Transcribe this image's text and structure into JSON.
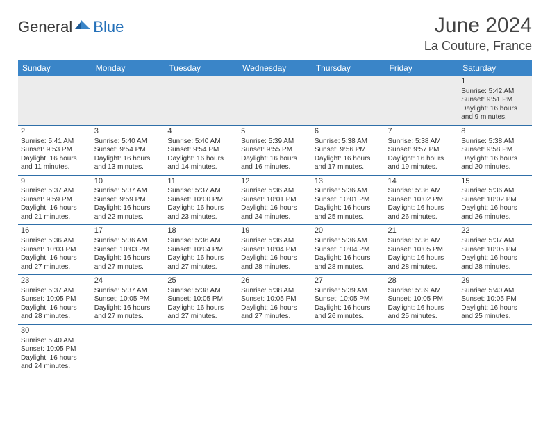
{
  "logo": {
    "part1": "General",
    "part2": "Blue"
  },
  "title": "June 2024",
  "location": "La Couture, France",
  "colors": {
    "header_bg": "#3a85c8",
    "header_text": "#ffffff",
    "row_divider": "#2f6fa8",
    "shaded_row": "#ececec",
    "text": "#333333",
    "logo_blue": "#2470b8"
  },
  "fonts": {
    "title_size": 30,
    "location_size": 18,
    "dayheader_size": 12,
    "cell_size": 10
  },
  "day_headers": [
    "Sunday",
    "Monday",
    "Tuesday",
    "Wednesday",
    "Thursday",
    "Friday",
    "Saturday"
  ],
  "weeks": [
    {
      "shaded": true,
      "days": [
        null,
        null,
        null,
        null,
        null,
        null,
        {
          "n": "1",
          "sunrise": "Sunrise: 5:42 AM",
          "sunset": "Sunset: 9:51 PM",
          "day1": "Daylight: 16 hours",
          "day2": "and 9 minutes."
        }
      ]
    },
    {
      "shaded": false,
      "days": [
        {
          "n": "2",
          "sunrise": "Sunrise: 5:41 AM",
          "sunset": "Sunset: 9:53 PM",
          "day1": "Daylight: 16 hours",
          "day2": "and 11 minutes."
        },
        {
          "n": "3",
          "sunrise": "Sunrise: 5:40 AM",
          "sunset": "Sunset: 9:54 PM",
          "day1": "Daylight: 16 hours",
          "day2": "and 13 minutes."
        },
        {
          "n": "4",
          "sunrise": "Sunrise: 5:40 AM",
          "sunset": "Sunset: 9:54 PM",
          "day1": "Daylight: 16 hours",
          "day2": "and 14 minutes."
        },
        {
          "n": "5",
          "sunrise": "Sunrise: 5:39 AM",
          "sunset": "Sunset: 9:55 PM",
          "day1": "Daylight: 16 hours",
          "day2": "and 16 minutes."
        },
        {
          "n": "6",
          "sunrise": "Sunrise: 5:38 AM",
          "sunset": "Sunset: 9:56 PM",
          "day1": "Daylight: 16 hours",
          "day2": "and 17 minutes."
        },
        {
          "n": "7",
          "sunrise": "Sunrise: 5:38 AM",
          "sunset": "Sunset: 9:57 PM",
          "day1": "Daylight: 16 hours",
          "day2": "and 19 minutes."
        },
        {
          "n": "8",
          "sunrise": "Sunrise: 5:38 AM",
          "sunset": "Sunset: 9:58 PM",
          "day1": "Daylight: 16 hours",
          "day2": "and 20 minutes."
        }
      ]
    },
    {
      "shaded": false,
      "days": [
        {
          "n": "9",
          "sunrise": "Sunrise: 5:37 AM",
          "sunset": "Sunset: 9:59 PM",
          "day1": "Daylight: 16 hours",
          "day2": "and 21 minutes."
        },
        {
          "n": "10",
          "sunrise": "Sunrise: 5:37 AM",
          "sunset": "Sunset: 9:59 PM",
          "day1": "Daylight: 16 hours",
          "day2": "and 22 minutes."
        },
        {
          "n": "11",
          "sunrise": "Sunrise: 5:37 AM",
          "sunset": "Sunset: 10:00 PM",
          "day1": "Daylight: 16 hours",
          "day2": "and 23 minutes."
        },
        {
          "n": "12",
          "sunrise": "Sunrise: 5:36 AM",
          "sunset": "Sunset: 10:01 PM",
          "day1": "Daylight: 16 hours",
          "day2": "and 24 minutes."
        },
        {
          "n": "13",
          "sunrise": "Sunrise: 5:36 AM",
          "sunset": "Sunset: 10:01 PM",
          "day1": "Daylight: 16 hours",
          "day2": "and 25 minutes."
        },
        {
          "n": "14",
          "sunrise": "Sunrise: 5:36 AM",
          "sunset": "Sunset: 10:02 PM",
          "day1": "Daylight: 16 hours",
          "day2": "and 26 minutes."
        },
        {
          "n": "15",
          "sunrise": "Sunrise: 5:36 AM",
          "sunset": "Sunset: 10:02 PM",
          "day1": "Daylight: 16 hours",
          "day2": "and 26 minutes."
        }
      ]
    },
    {
      "shaded": false,
      "days": [
        {
          "n": "16",
          "sunrise": "Sunrise: 5:36 AM",
          "sunset": "Sunset: 10:03 PM",
          "day1": "Daylight: 16 hours",
          "day2": "and 27 minutes."
        },
        {
          "n": "17",
          "sunrise": "Sunrise: 5:36 AM",
          "sunset": "Sunset: 10:03 PM",
          "day1": "Daylight: 16 hours",
          "day2": "and 27 minutes."
        },
        {
          "n": "18",
          "sunrise": "Sunrise: 5:36 AM",
          "sunset": "Sunset: 10:04 PM",
          "day1": "Daylight: 16 hours",
          "day2": "and 27 minutes."
        },
        {
          "n": "19",
          "sunrise": "Sunrise: 5:36 AM",
          "sunset": "Sunset: 10:04 PM",
          "day1": "Daylight: 16 hours",
          "day2": "and 28 minutes."
        },
        {
          "n": "20",
          "sunrise": "Sunrise: 5:36 AM",
          "sunset": "Sunset: 10:04 PM",
          "day1": "Daylight: 16 hours",
          "day2": "and 28 minutes."
        },
        {
          "n": "21",
          "sunrise": "Sunrise: 5:36 AM",
          "sunset": "Sunset: 10:05 PM",
          "day1": "Daylight: 16 hours",
          "day2": "and 28 minutes."
        },
        {
          "n": "22",
          "sunrise": "Sunrise: 5:37 AM",
          "sunset": "Sunset: 10:05 PM",
          "day1": "Daylight: 16 hours",
          "day2": "and 28 minutes."
        }
      ]
    },
    {
      "shaded": false,
      "days": [
        {
          "n": "23",
          "sunrise": "Sunrise: 5:37 AM",
          "sunset": "Sunset: 10:05 PM",
          "day1": "Daylight: 16 hours",
          "day2": "and 28 minutes."
        },
        {
          "n": "24",
          "sunrise": "Sunrise: 5:37 AM",
          "sunset": "Sunset: 10:05 PM",
          "day1": "Daylight: 16 hours",
          "day2": "and 27 minutes."
        },
        {
          "n": "25",
          "sunrise": "Sunrise: 5:38 AM",
          "sunset": "Sunset: 10:05 PM",
          "day1": "Daylight: 16 hours",
          "day2": "and 27 minutes."
        },
        {
          "n": "26",
          "sunrise": "Sunrise: 5:38 AM",
          "sunset": "Sunset: 10:05 PM",
          "day1": "Daylight: 16 hours",
          "day2": "and 27 minutes."
        },
        {
          "n": "27",
          "sunrise": "Sunrise: 5:39 AM",
          "sunset": "Sunset: 10:05 PM",
          "day1": "Daylight: 16 hours",
          "day2": "and 26 minutes."
        },
        {
          "n": "28",
          "sunrise": "Sunrise: 5:39 AM",
          "sunset": "Sunset: 10:05 PM",
          "day1": "Daylight: 16 hours",
          "day2": "and 25 minutes."
        },
        {
          "n": "29",
          "sunrise": "Sunrise: 5:40 AM",
          "sunset": "Sunset: 10:05 PM",
          "day1": "Daylight: 16 hours",
          "day2": "and 25 minutes."
        }
      ]
    },
    {
      "shaded": false,
      "days": [
        {
          "n": "30",
          "sunrise": "Sunrise: 5:40 AM",
          "sunset": "Sunset: 10:05 PM",
          "day1": "Daylight: 16 hours",
          "day2": "and 24 minutes."
        },
        null,
        null,
        null,
        null,
        null,
        null
      ]
    }
  ]
}
